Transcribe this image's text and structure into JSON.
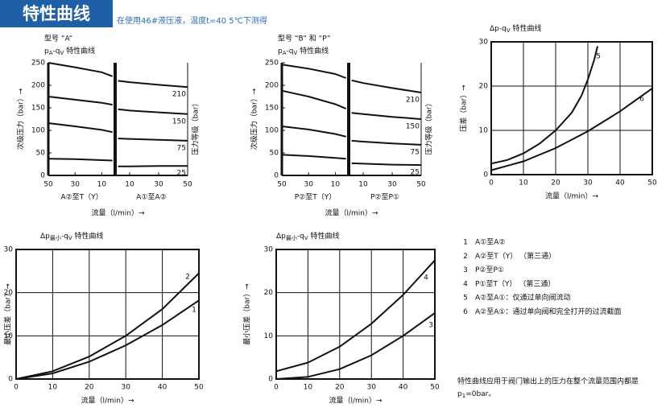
{
  "header": {
    "title": "特性曲线",
    "note": "在使用46#液压液，温度t=40  5℃下测得"
  },
  "chart_data": [
    {
      "type": "split-line",
      "title": "型号 “A”",
      "subtitle": [
        "p",
        "A",
        "-q",
        "V",
        " 特性曲线"
      ],
      "ylabel": "次级压力（bar）→",
      "y2label": "压力等级（bar）",
      "xlabel": "流量（l/min）→",
      "color": "#111111",
      "ylim": [
        0,
        250
      ],
      "yticks": [
        0,
        50,
        100,
        150,
        200,
        250
      ],
      "levels": [
        "210",
        "150",
        "75",
        "25"
      ],
      "halves": [
        {
          "label": "A②至T（Y）",
          "xlim": [
            50,
            0
          ],
          "xticks": [
            50,
            30,
            10
          ],
          "x": [
            50,
            30,
            10,
            2
          ],
          "series": [
            {
              "values": [
                250,
                240,
                229,
                220
              ]
            },
            {
              "values": [
                175,
                168,
                161,
                157
              ]
            },
            {
              "values": [
                116,
                109,
                101,
                96
              ]
            },
            {
              "values": [
                37,
                36,
                34,
                33
              ]
            }
          ]
        },
        {
          "label": "A①至A②",
          "xlim": [
            0,
            50
          ],
          "xticks": [
            10,
            30,
            50
          ],
          "x": [
            2,
            10,
            30,
            50
          ],
          "series": [
            {
              "values": [
                210,
                207,
                201,
                196
              ]
            },
            {
              "values": [
                147,
                144,
                140,
                136
              ]
            },
            {
              "values": [
                82,
                81,
                79,
                77
              ]
            },
            {
              "values": [
                20,
                20,
                21,
                21
              ]
            }
          ]
        }
      ]
    },
    {
      "type": "split-line",
      "title": "型号 “B” 和 “P”",
      "subtitle": [
        "p",
        "A",
        "-q",
        "V",
        " 特性曲线"
      ],
      "ylabel": "次级压力（bar）→",
      "y2label": "压力等级（bar）",
      "xlabel": "流量（l/min）→",
      "color": "#111111",
      "ylim": [
        0,
        250
      ],
      "yticks": [
        0,
        50,
        100,
        150,
        200,
        250
      ],
      "levels": [
        "210",
        "150",
        "75",
        "25"
      ],
      "halves": [
        {
          "label": "P②至T（Y）",
          "xlim": [
            50,
            0
          ],
          "xticks": [
            50,
            30,
            10
          ],
          "x": [
            50,
            30,
            10,
            2
          ],
          "series": [
            {
              "values": [
                246,
                237,
                225,
                216
              ]
            },
            {
              "values": [
                188,
                175,
                158,
                148
              ]
            },
            {
              "values": [
                109,
                102,
                92,
                86
              ]
            },
            {
              "values": [
                46,
                43,
                39,
                37
              ]
            }
          ]
        },
        {
          "label": "P②至P①",
          "xlim": [
            0,
            50
          ],
          "xticks": [
            10,
            30,
            50
          ],
          "x": [
            2,
            10,
            30,
            50
          ],
          "series": [
            {
              "values": [
                211,
                205,
                194,
                184
              ]
            },
            {
              "values": [
                139,
                136,
                130,
                125
              ]
            },
            {
              "values": [
                77,
                75,
                71,
                68
              ]
            },
            {
              "values": [
                27,
                26,
                24,
                23
              ]
            }
          ]
        }
      ]
    },
    {
      "type": "line",
      "title": [
        "Δp-q",
        "V",
        " 特性曲线"
      ],
      "ylabel": "压差（bar）→",
      "xlabel": "流量（l/min）→",
      "color": "#111111",
      "grid": true,
      "xlim": [
        0,
        50
      ],
      "xticks": [
        0,
        10,
        20,
        30,
        40,
        50
      ],
      "ylim": [
        0,
        30
      ],
      "yticks": [
        0,
        10,
        20,
        30
      ],
      "series": [
        {
          "name": "5",
          "x": [
            0,
            5,
            10,
            15,
            20,
            25,
            28,
            30,
            32,
            33
          ],
          "values": [
            2.5,
            3.3,
            4.8,
            7,
            10,
            14,
            17.8,
            21.5,
            26,
            29
          ]
        },
        {
          "name": "6",
          "x": [
            0,
            10,
            20,
            30,
            40,
            50
          ],
          "values": [
            1,
            3,
            6,
            9.8,
            14.3,
            19.5
          ]
        }
      ]
    },
    {
      "type": "line",
      "title": [
        "Δp",
        "最小",
        "-q",
        "V",
        " 特性曲线"
      ],
      "ylabel": "最小压差（bar）→",
      "xlabel": "流量（l/min）→",
      "color": "#111111",
      "grid": true,
      "xlim": [
        0,
        50
      ],
      "xticks": [
        0,
        10,
        20,
        30,
        40,
        50
      ],
      "ylim": [
        0,
        30
      ],
      "yticks": [
        0,
        10,
        20,
        30
      ],
      "series": [
        {
          "name": "2",
          "x": [
            0,
            10,
            20,
            30,
            40,
            50
          ],
          "values": [
            0,
            1.8,
            5.2,
            10,
            16.2,
            24.5
          ]
        },
        {
          "name": "1",
          "x": [
            0,
            10,
            20,
            30,
            40,
            50
          ],
          "values": [
            0,
            1.3,
            4,
            7.8,
            12.5,
            18.2
          ]
        }
      ]
    },
    {
      "type": "line",
      "title": [
        "Δp",
        "最小",
        "-q",
        "V",
        " 特性曲线"
      ],
      "ylabel": "最小压差（bar）→",
      "xlabel": "流量（l/min）→",
      "color": "#111111",
      "grid": true,
      "xlim": [
        0,
        50
      ],
      "xticks": [
        0,
        10,
        20,
        30,
        40,
        50
      ],
      "ylim": [
        0,
        30
      ],
      "yticks": [
        0,
        10,
        20,
        30
      ],
      "series": [
        {
          "name": "4",
          "x": [
            0,
            10,
            20,
            30,
            40,
            50
          ],
          "values": [
            1.8,
            3.8,
            7.5,
            12.8,
            19.5,
            27.5
          ]
        },
        {
          "name": "3",
          "x": [
            0,
            10,
            20,
            30,
            40,
            50
          ],
          "values": [
            0,
            0.5,
            2.3,
            5.5,
            10,
            15.3
          ]
        }
      ]
    }
  ],
  "legend": {
    "items": [
      {
        "number": "1",
        "text": "A①至A②"
      },
      {
        "number": "2",
        "text": "A②至T（Y）  （第三通）"
      },
      {
        "number": "3",
        "text": "P②至P①"
      },
      {
        "number": "4",
        "text": "P①至T（Y）  （第三通）"
      },
      {
        "number": "5",
        "text": "A②至A①：仅通过单向阀流动"
      },
      {
        "number": "6",
        "text": "A②至A①：通过单向阀和完全打开的过流截面"
      }
    ]
  },
  "footnote": {
    "line1": "特性曲线应用于阀门输出上的压力在整个流量范围内都是",
    "line2": [
      "p",
      "1",
      "=0bar。"
    ]
  }
}
